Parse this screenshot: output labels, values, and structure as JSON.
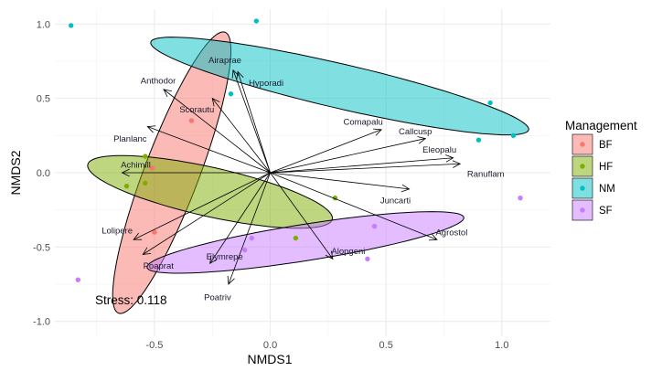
{
  "chart_data": {
    "type": "scatter",
    "xlabel": "NMDS1",
    "ylabel": "NMDS2",
    "xlim": [
      -0.93,
      1.21
    ],
    "ylim": [
      -1.1,
      1.1
    ],
    "x_ticks": [
      -0.5,
      0.0,
      0.5,
      1.0
    ],
    "x_tick_labels": [
      "-0.5",
      "0.0",
      "0.5",
      "1.0"
    ],
    "y_ticks": [
      -1.0,
      -0.5,
      0.0,
      0.5,
      1.0
    ],
    "y_tick_labels": [
      "-1.0",
      "-0.5",
      "0.0",
      "0.5",
      "1.0"
    ],
    "grid": true,
    "annotation": "Stress: 0.118",
    "legend": {
      "title": "Management",
      "placement": "right"
    },
    "groups": [
      {
        "name": "BF",
        "color": "#F8766D",
        "points": [
          [
            -0.34,
            0.35
          ],
          [
            -0.51,
            0.03
          ],
          [
            -0.5,
            -0.4
          ]
        ],
        "ellipse": {
          "center": [
            -0.425,
            0.0
          ],
          "major_end": [
            -0.195,
            0.945
          ],
          "minor_end": [
            -0.314,
            -0.065
          ]
        }
      },
      {
        "name": "HF",
        "color": "#7CAE00",
        "points": [
          [
            -0.54,
            0.11
          ],
          [
            -0.54,
            -0.07
          ],
          [
            -0.62,
            -0.09
          ],
          [
            0.11,
            -0.44
          ],
          [
            0.28,
            -0.17
          ]
        ],
        "ellipse": {
          "center": [
            -0.26,
            -0.129
          ],
          "major_end": [
            0.268,
            -0.313
          ],
          "minor_end": [
            -0.284,
            -0.29
          ]
        }
      },
      {
        "name": "NM",
        "color": "#00BFC4",
        "points": [
          [
            -0.86,
            0.99
          ],
          [
            -0.06,
            1.02
          ],
          [
            -0.17,
            0.53
          ],
          [
            0.95,
            0.47
          ],
          [
            0.9,
            0.22
          ],
          [
            1.05,
            0.25
          ]
        ],
        "ellipse": {
          "center": [
            0.3,
            0.583
          ],
          "major_end": [
            1.116,
            0.288
          ],
          "minor_end": [
            0.277,
            0.438
          ]
        }
      },
      {
        "name": "SF",
        "color": "#C77CFF",
        "points": [
          [
            -0.83,
            -0.72
          ],
          [
            -0.08,
            -0.44
          ],
          [
            -0.11,
            -0.52
          ],
          [
            0.45,
            -0.36
          ],
          [
            0.42,
            -0.58
          ],
          [
            1.08,
            -0.17
          ]
        ],
        "ellipse": {
          "center": [
            0.152,
            -0.469
          ],
          "major_end": [
            0.836,
            -0.301
          ],
          "minor_end": [
            0.164,
            -0.59
          ]
        }
      }
    ],
    "species_vectors": [
      {
        "name": "Airaprae",
        "x": -0.16,
        "y": 0.69
      },
      {
        "name": "Hyporadi",
        "x": -0.14,
        "y": 0.68
      },
      {
        "name": "Anthodor",
        "x": -0.46,
        "y": 0.56
      },
      {
        "name": "Scorautu",
        "x": -0.25,
        "y": 0.5
      },
      {
        "name": "Planlanc",
        "x": -0.53,
        "y": 0.31
      },
      {
        "name": "Achimill",
        "x": -0.64,
        "y": 0.0
      },
      {
        "name": "Lolipere",
        "x": -0.59,
        "y": -0.45
      },
      {
        "name": "Poaprat",
        "x": -0.55,
        "y": -0.55
      },
      {
        "name": "Elymrepe",
        "x": -0.26,
        "y": -0.61
      },
      {
        "name": "Poatriv",
        "x": -0.18,
        "y": -0.75
      },
      {
        "name": "Alopgeni",
        "x": 0.27,
        "y": -0.58
      },
      {
        "name": "Agrostol",
        "x": 0.72,
        "y": -0.45
      },
      {
        "name": "Juncarti",
        "x": 0.6,
        "y": -0.11
      },
      {
        "name": "Ranuflam",
        "x": 0.82,
        "y": 0.06
      },
      {
        "name": "Eleopalu",
        "x": 0.79,
        "y": 0.1
      },
      {
        "name": "Callcusp",
        "x": 0.67,
        "y": 0.23
      },
      {
        "name": "Comapalu",
        "x": 0.48,
        "y": 0.29
      }
    ]
  }
}
